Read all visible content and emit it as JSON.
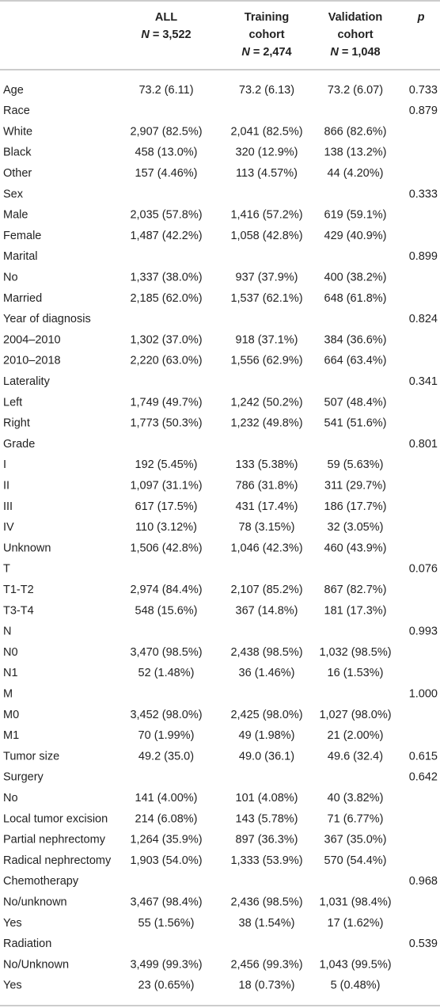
{
  "header": {
    "columns": [
      {
        "title_lines": [
          "ALL"
        ],
        "n_symbol": "N",
        "n": "= 3,522"
      },
      {
        "title_lines": [
          "Training",
          "cohort"
        ],
        "n_symbol": "N",
        "n": "= 2,474"
      },
      {
        "title_lines": [
          "Validation",
          "cohort"
        ],
        "n_symbol": "N",
        "n": "= 1,048"
      },
      {
        "title_lines": [
          "p"
        ]
      }
    ]
  },
  "table": {
    "rows": [
      [
        "Age",
        "73.2 (6.11)",
        "73.2 (6.13)",
        "73.2 (6.07)",
        "0.733"
      ],
      [
        "Race",
        null,
        null,
        null,
        "0.879"
      ],
      [
        "White",
        "2,907 (82.5%)",
        "2,041 (82.5%)",
        "866 (82.6%)",
        null
      ],
      [
        "Black",
        "458 (13.0%)",
        "320 (12.9%)",
        "138 (13.2%)",
        null
      ],
      [
        "Other",
        "157 (4.46%)",
        "113 (4.57%)",
        "44 (4.20%)",
        null
      ],
      [
        "Sex",
        null,
        null,
        null,
        "0.333"
      ],
      [
        "Male",
        "2,035 (57.8%)",
        "1,416 (57.2%)",
        "619 (59.1%)",
        null
      ],
      [
        "Female",
        "1,487 (42.2%)",
        "1,058 (42.8%)",
        "429 (40.9%)",
        null
      ],
      [
        "Marital",
        null,
        null,
        null,
        "0.899"
      ],
      [
        "No",
        "1,337 (38.0%)",
        "937 (37.9%)",
        "400 (38.2%)",
        null
      ],
      [
        "Married",
        "2,185 (62.0%)",
        "1,537 (62.1%)",
        "648 (61.8%)",
        null
      ],
      [
        "Year of diagnosis",
        null,
        null,
        null,
        "0.824"
      ],
      [
        "2004–2010",
        "1,302 (37.0%)",
        "918 (37.1%)",
        "384 (36.6%)",
        null
      ],
      [
        "2010–2018",
        "2,220 (63.0%)",
        "1,556 (62.9%)",
        "664 (63.4%)",
        null
      ],
      [
        "Laterality",
        null,
        null,
        null,
        "0.341"
      ],
      [
        "Left",
        "1,749 (49.7%)",
        "1,242 (50.2%)",
        "507 (48.4%)",
        null
      ],
      [
        "Right",
        "1,773 (50.3%)",
        "1,232 (49.8%)",
        "541 (51.6%)",
        null
      ],
      [
        "Grade",
        null,
        null,
        null,
        "0.801"
      ],
      [
        "I",
        "192 (5.45%)",
        "133 (5.38%)",
        "59 (5.63%)",
        null
      ],
      [
        "II",
        "1,097 (31.1%)",
        "786 (31.8%)",
        "311 (29.7%)",
        null
      ],
      [
        "III",
        "617 (17.5%)",
        "431 (17.4%)",
        "186 (17.7%)",
        null
      ],
      [
        "IV",
        "110 (3.12%)",
        "78 (3.15%)",
        "32 (3.05%)",
        null
      ],
      [
        "Unknown",
        "1,506 (42.8%)",
        "1,046 (42.3%)",
        "460 (43.9%)",
        null
      ],
      [
        "T",
        null,
        null,
        null,
        "0.076"
      ],
      [
        "T1-T2",
        "2,974 (84.4%)",
        "2,107 (85.2%)",
        "867 (82.7%)",
        null
      ],
      [
        "T3-T4",
        "548 (15.6%)",
        "367 (14.8%)",
        "181 (17.3%)",
        null
      ],
      [
        "N",
        null,
        null,
        null,
        "0.993"
      ],
      [
        "N0",
        "3,470 (98.5%)",
        "2,438 (98.5%)",
        "1,032 (98.5%)",
        null
      ],
      [
        "N1",
        "52 (1.48%)",
        "36 (1.46%)",
        "16 (1.53%)",
        null
      ],
      [
        "M",
        null,
        null,
        null,
        "1.000"
      ],
      [
        "M0",
        "3,452 (98.0%)",
        "2,425 (98.0%)",
        "1,027 (98.0%)",
        null
      ],
      [
        "M1",
        "70 (1.99%)",
        "49 (1.98%)",
        "21 (2.00%)",
        null
      ],
      [
        "Tumor size",
        "49.2 (35.0)",
        "49.0 (36.1)",
        "49.6 (32.4)",
        "0.615"
      ],
      [
        "Surgery",
        null,
        null,
        null,
        "0.642"
      ],
      [
        "No",
        "141 (4.00%)",
        "101 (4.08%)",
        "40 (3.82%)",
        null
      ],
      [
        "Local tumor excision",
        "214 (6.08%)",
        "143 (5.78%)",
        "71 (6.77%)",
        null
      ],
      [
        "Partial nephrectomy",
        "1,264 (35.9%)",
        "897 (36.3%)",
        "367 (35.0%)",
        null
      ],
      [
        "Radical nephrectomy",
        "1,903 (54.0%)",
        "1,333 (53.9%)",
        "570 (54.4%)",
        null
      ],
      [
        "Chemotherapy",
        null,
        null,
        null,
        "0.968"
      ],
      [
        "No/unknown",
        "3,467 (98.4%)",
        "2,436 (98.5%)",
        "1,031 (98.4%)",
        null
      ],
      [
        "Yes",
        "55 (1.56%)",
        "38 (1.54%)",
        "17 (1.62%)",
        null
      ],
      [
        "Radiation",
        null,
        null,
        null,
        "0.539"
      ],
      [
        "No/Unknown",
        "3,499 (99.3%)",
        "2,456 (99.3%)",
        "1,043 (99.5%)",
        null
      ],
      [
        "Yes",
        "23 (0.65%)",
        "18 (0.73%)",
        "5 (0.48%)",
        null
      ]
    ]
  }
}
